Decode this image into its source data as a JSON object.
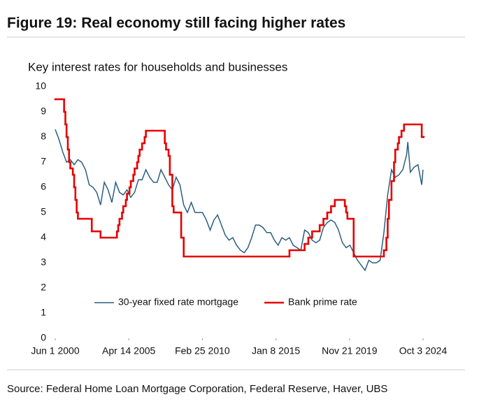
{
  "chart_data": {
    "type": "line",
    "title": "Figure 19: Real economy still facing higher rates",
    "subtitle": "Key interest rates for households and businesses",
    "source": "Source: Federal Home Loan Mortgage Corporation, Federal Reserve, Haver, UBS",
    "xlim": [
      "2000-06-01",
      "2024-10-03"
    ],
    "xticks": [
      {
        "value": "2000-06-01",
        "label": "Jun 1 2000"
      },
      {
        "value": "2005-04-14",
        "label": "Apr 14 2005"
      },
      {
        "value": "2010-02-25",
        "label": "Feb 25 2010"
      },
      {
        "value": "2015-01-08",
        "label": "Jan 8 2015"
      },
      {
        "value": "2019-11-21",
        "label": "Nov 21 2019"
      },
      {
        "value": "2024-10-03",
        "label": "Oct 3 2024"
      }
    ],
    "ylim": [
      0,
      10
    ],
    "yticks": [
      0,
      1,
      2,
      3,
      4,
      5,
      6,
      7,
      8,
      9,
      10
    ],
    "grid": false,
    "series": [
      {
        "name": "30-year fixed rate mortgage",
        "color": "#2b5f7e",
        "step": false,
        "x": [
          "2000-06",
          "2000-09",
          "2000-12",
          "2001-03",
          "2001-06",
          "2001-09",
          "2001-12",
          "2002-03",
          "2002-06",
          "2002-09",
          "2002-12",
          "2003-03",
          "2003-06",
          "2003-09",
          "2003-12",
          "2004-03",
          "2004-06",
          "2004-09",
          "2004-12",
          "2005-03",
          "2005-06",
          "2005-09",
          "2005-12",
          "2006-03",
          "2006-06",
          "2006-09",
          "2006-12",
          "2007-03",
          "2007-06",
          "2007-09",
          "2007-12",
          "2008-03",
          "2008-06",
          "2008-09",
          "2008-12",
          "2009-03",
          "2009-06",
          "2009-09",
          "2009-12",
          "2010-03",
          "2010-06",
          "2010-09",
          "2010-12",
          "2011-03",
          "2011-06",
          "2011-09",
          "2011-12",
          "2012-03",
          "2012-06",
          "2012-09",
          "2012-12",
          "2013-03",
          "2013-06",
          "2013-09",
          "2013-12",
          "2014-03",
          "2014-06",
          "2014-09",
          "2014-12",
          "2015-03",
          "2015-06",
          "2015-09",
          "2015-12",
          "2016-03",
          "2016-06",
          "2016-09",
          "2016-12",
          "2017-03",
          "2017-06",
          "2017-09",
          "2017-12",
          "2018-03",
          "2018-06",
          "2018-09",
          "2018-12",
          "2019-03",
          "2019-06",
          "2019-09",
          "2019-12",
          "2020-03",
          "2020-06",
          "2020-09",
          "2020-12",
          "2021-03",
          "2021-06",
          "2021-09",
          "2021-12",
          "2022-03",
          "2022-06",
          "2022-09",
          "2022-12",
          "2023-03",
          "2023-06",
          "2023-09",
          "2023-10",
          "2023-12",
          "2024-03",
          "2024-06",
          "2024-09",
          "2024-10"
        ],
        "values": [
          8.3,
          7.9,
          7.4,
          7.0,
          7.1,
          6.9,
          7.1,
          7.0,
          6.7,
          6.1,
          6.0,
          5.8,
          5.3,
          6.2,
          5.9,
          5.4,
          6.2,
          5.8,
          5.7,
          5.9,
          5.6,
          5.8,
          6.3,
          6.3,
          6.7,
          6.4,
          6.2,
          6.2,
          6.7,
          6.4,
          6.1,
          5.9,
          6.4,
          6.1,
          5.3,
          5.0,
          5.4,
          5.0,
          5.0,
          5.0,
          4.7,
          4.3,
          4.7,
          4.9,
          4.5,
          4.1,
          3.9,
          4.0,
          3.7,
          3.5,
          3.4,
          3.6,
          4.0,
          4.5,
          4.5,
          4.4,
          4.2,
          4.2,
          3.9,
          3.7,
          4.0,
          3.9,
          4.0,
          3.7,
          3.6,
          3.5,
          4.3,
          4.2,
          3.9,
          3.8,
          3.9,
          4.4,
          4.6,
          4.7,
          4.6,
          4.3,
          3.8,
          3.6,
          3.7,
          3.4,
          3.1,
          2.9,
          2.7,
          3.1,
          3.0,
          3.0,
          3.1,
          4.2,
          5.7,
          6.7,
          6.4,
          6.5,
          6.7,
          7.3,
          7.8,
          6.6,
          6.8,
          6.9,
          6.1,
          6.7
        ]
      },
      {
        "name": "Bank prime rate",
        "color": "#e60000",
        "step": true,
        "x": [
          "2000-06",
          "2001-01",
          "2001-02",
          "2001-03",
          "2001-04",
          "2001-05",
          "2001-06",
          "2001-08",
          "2001-09",
          "2001-10",
          "2001-11",
          "2001-12",
          "2002-11",
          "2003-06",
          "2004-07",
          "2004-08",
          "2004-09",
          "2004-11",
          "2004-12",
          "2005-02",
          "2005-03",
          "2005-05",
          "2005-06",
          "2005-08",
          "2005-09",
          "2005-11",
          "2005-12",
          "2006-01",
          "2006-03",
          "2006-05",
          "2006-06",
          "2007-09",
          "2007-10",
          "2007-12",
          "2008-01",
          "2008-03",
          "2008-04",
          "2008-10",
          "2008-12",
          "2015-12",
          "2016-12",
          "2017-03",
          "2017-06",
          "2017-12",
          "2018-03",
          "2018-06",
          "2018-09",
          "2018-12",
          "2019-08",
          "2019-09",
          "2019-10",
          "2020-03",
          "2022-03",
          "2022-05",
          "2022-06",
          "2022-07",
          "2022-09",
          "2022-11",
          "2022-12",
          "2023-02",
          "2023-03",
          "2023-05",
          "2023-07",
          "2024-09",
          "2024-10"
        ],
        "values": [
          9.5,
          9.0,
          8.5,
          8.0,
          7.5,
          7.0,
          6.75,
          6.5,
          6.0,
          5.5,
          5.0,
          4.75,
          4.25,
          4.0,
          4.25,
          4.5,
          4.75,
          5.0,
          5.25,
          5.5,
          5.75,
          6.0,
          6.25,
          6.5,
          6.75,
          7.0,
          7.25,
          7.5,
          7.75,
          8.0,
          8.25,
          7.75,
          7.5,
          7.25,
          6.5,
          5.25,
          5.0,
          4.0,
          3.25,
          3.5,
          3.75,
          4.0,
          4.25,
          4.5,
          4.75,
          5.0,
          5.25,
          5.5,
          5.25,
          5.0,
          4.75,
          3.25,
          3.5,
          4.0,
          4.75,
          5.5,
          6.25,
          7.0,
          7.5,
          7.75,
          8.0,
          8.25,
          8.5,
          8.0,
          8.0
        ]
      }
    ]
  }
}
